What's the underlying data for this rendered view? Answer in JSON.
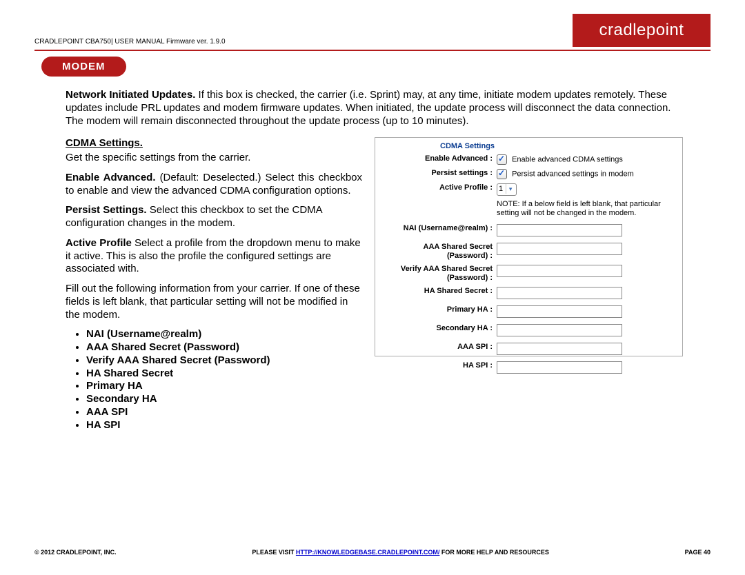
{
  "header": {
    "doc_line": "CRADLEPOINT CBA750| USER MANUAL Firmware ver. 1.9.0",
    "brand": "cradlepoint"
  },
  "pill": "MODEM",
  "intro": {
    "bold": "Network Initiated Updates.",
    "rest": " If this box is checked, the carrier (i.e. Sprint) may, at any time, initiate modem updates remotely. These updates include PRL updates and modem firmware updates. When initiated, the update process will disconnect the data connection. The modem will remain disconnected throughout the update process (up to 10 minutes)."
  },
  "left": {
    "heading": "CDMA Settings.",
    "p1": "Get the specific settings from the carrier.",
    "p2b": "Enable Advanced.",
    "p2": " (Default: Deselected.) Select this checkbox to enable and view the advanced CDMA configuration options.",
    "p3b": "Persist Settings.",
    "p3": " Select this checkbox to set the CDMA configuration changes in the modem.",
    "p4b": "Active Profile",
    "p4": " Select a profile from the dropdown menu to make it active. This is also the profile the configured settings are associated with.",
    "p5": "Fill out the following information from your carrier. If one of these fields is left blank, that particular setting will not be modified in the modem.",
    "bullets": [
      "NAI (Username@realm)",
      "AAA Shared Secret (Password)",
      "Verify AAA Shared Secret (Password)",
      "HA Shared Secret",
      "Primary HA",
      "Secondary HA",
      "AAA SPI",
      "HA SPI"
    ]
  },
  "form": {
    "title": "CDMA Settings",
    "enable_label": "Enable Advanced :",
    "enable_text": "Enable advanced CDMA settings",
    "persist_label": "Persist settings :",
    "persist_text": "Persist advanced settings in modem",
    "active_label": "Active Profile :",
    "active_value": "1",
    "note": "NOTE: If a below field is left blank, that particular setting will not be changed in the modem.",
    "fields": [
      "NAI (Username@realm) :",
      "AAA Shared Secret (Password) :",
      "Verify AAA Shared Secret (Password) :",
      "HA Shared Secret :",
      "Primary HA :",
      "Secondary HA :",
      "AAA SPI :",
      "HA SPI :"
    ]
  },
  "footer": {
    "copyright": "© 2012 CRADLEPOINT, INC.",
    "center_pre": "PLEASE VISIT ",
    "center_link": "HTTP://KNOWLEDGEBASE.CRADLEPOINT.COM/",
    "center_post": " FOR MORE HELP AND RESOURCES",
    "page": "PAGE 40"
  }
}
